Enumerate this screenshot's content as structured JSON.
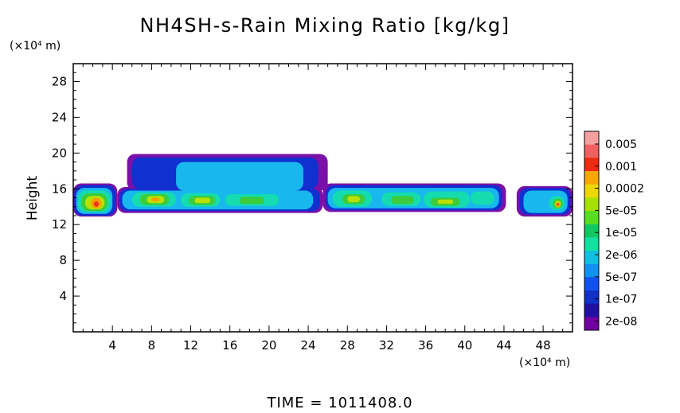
{
  "chart_data": {
    "type": "heatmap",
    "title": "NH4SH-s-Rain Mixing Ratio [kg/kg]",
    "ylabel": "Height",
    "y_unit_label": "(×10⁴ m)",
    "x_unit_label": "(×10⁴ m)",
    "xlim": [
      0,
      51
    ],
    "ylim": [
      0,
      30
    ],
    "x_ticks": [
      4,
      8,
      12,
      16,
      20,
      24,
      28,
      32,
      36,
      40,
      44,
      48
    ],
    "y_ticks": [
      4,
      8,
      12,
      16,
      20,
      24,
      28
    ],
    "colorbar": {
      "labels": [
        "0.005",
        "0.001",
        "0.0002",
        "5e-05",
        "1e-05",
        "2e-06",
        "5e-07",
        "1e-07",
        "2e-08"
      ],
      "colors": [
        "#f4a0a0",
        "#f06060",
        "#ee2a10",
        "#f7a800",
        "#ecd800",
        "#a8e000",
        "#58dd20",
        "#10c860",
        "#10e0a0",
        "#10c0e0",
        "#1090f0",
        "#1050f0",
        "#1030c8",
        "#2010a0",
        "#7000a0"
      ]
    },
    "field_layers": [
      {
        "level": "2e-08",
        "color": "#7a10a8",
        "regions": [
          {
            "x": [
              0.0,
              4.5
            ],
            "y": [
              12.9,
              16.6
            ]
          },
          {
            "x": [
              4.5,
              25.5
            ],
            "y": [
              13.3,
              16.2
            ]
          },
          {
            "x": [
              5.5,
              26.0
            ],
            "y": [
              15.8,
              19.9
            ]
          },
          {
            "x": [
              25.5,
              44.2
            ],
            "y": [
              13.4,
              16.6
            ]
          },
          {
            "x": [
              45.3,
              51.0
            ],
            "y": [
              12.9,
              16.3
            ]
          }
        ]
      },
      {
        "level": "1e-07",
        "color": "#1030d0",
        "regions": [
          {
            "x": [
              0.1,
              4.3
            ],
            "y": [
              13.0,
              16.4
            ]
          },
          {
            "x": [
              4.7,
              25.2
            ],
            "y": [
              13.5,
              16.0
            ]
          },
          {
            "x": [
              6.0,
              25.0
            ],
            "y": [
              16.0,
              19.5
            ]
          },
          {
            "x": [
              25.8,
              43.8
            ],
            "y": [
              13.6,
              16.4
            ]
          },
          {
            "x": [
              45.6,
              50.8
            ],
            "y": [
              13.1,
              16.1
            ]
          }
        ]
      },
      {
        "level": "5e-07",
        "color": "#18b8ee",
        "regions": [
          {
            "x": [
              0.3,
              4.0
            ],
            "y": [
              13.2,
              16.1
            ]
          },
          {
            "x": [
              5.0,
              24.5
            ],
            "y": [
              13.7,
              15.8
            ]
          },
          {
            "x": [
              10.5,
              23.5
            ],
            "y": [
              15.8,
              19.0
            ]
          },
          {
            "x": [
              26.0,
              43.5
            ],
            "y": [
              13.8,
              16.1
            ]
          },
          {
            "x": [
              46.0,
              50.5
            ],
            "y": [
              13.3,
              15.8
            ]
          }
        ]
      },
      {
        "level": "2e-06",
        "color": "#14dcb0",
        "regions": [
          {
            "x": [
              0.5,
              3.8
            ],
            "y": [
              13.4,
              15.8
            ]
          },
          {
            "x": [
              6.0,
              10.5
            ],
            "y": [
              14.0,
              15.6
            ]
          },
          {
            "x": [
              11.0,
              15.0
            ],
            "y": [
              14.0,
              15.5
            ]
          },
          {
            "x": [
              15.5,
              21.0
            ],
            "y": [
              14.1,
              15.4
            ]
          },
          {
            "x": [
              26.5,
              30.5
            ],
            "y": [
              14.0,
              15.8
            ]
          },
          {
            "x": [
              31.5,
              35.5
            ],
            "y": [
              14.1,
              15.6
            ]
          },
          {
            "x": [
              35.8,
              40.5
            ],
            "y": [
              13.9,
              15.7
            ]
          },
          {
            "x": [
              40.6,
              43.0
            ],
            "y": [
              14.2,
              15.7
            ]
          },
          {
            "x": [
              48.6,
              50.2
            ],
            "y": [
              13.6,
              15.2
            ]
          }
        ]
      },
      {
        "level": "1e-05",
        "color": "#3ccc3c",
        "regions": [
          {
            "x": [
              0.8,
              3.5
            ],
            "y": [
              13.5,
              15.5
            ]
          },
          {
            "x": [
              6.8,
              9.8
            ],
            "y": [
              14.2,
              15.4
            ]
          },
          {
            "x": [
              11.8,
              14.5
            ],
            "y": [
              14.2,
              15.2
            ]
          },
          {
            "x": [
              17.0,
              19.5
            ],
            "y": [
              14.3,
              15.1
            ]
          },
          {
            "x": [
              27.5,
              29.8
            ],
            "y": [
              14.3,
              15.4
            ]
          },
          {
            "x": [
              32.5,
              34.8
            ],
            "y": [
              14.3,
              15.2
            ]
          },
          {
            "x": [
              36.5,
              39.5
            ],
            "y": [
              14.1,
              15.0
            ]
          },
          {
            "x": [
              49.0,
              50.0
            ],
            "y": [
              13.8,
              14.9
            ]
          }
        ]
      },
      {
        "level": "5e-05",
        "color": "#b8e000",
        "regions": [
          {
            "x": [
              1.2,
              3.2
            ],
            "y": [
              13.7,
              15.2
            ]
          },
          {
            "x": [
              7.5,
              9.3
            ],
            "y": [
              14.4,
              15.2
            ]
          },
          {
            "x": [
              12.4,
              14.0
            ],
            "y": [
              14.4,
              15.0
            ]
          },
          {
            "x": [
              28.0,
              29.3
            ],
            "y": [
              14.5,
              15.2
            ]
          },
          {
            "x": [
              37.2,
              38.8
            ],
            "y": [
              14.3,
              14.8
            ]
          },
          {
            "x": [
              49.2,
              49.8
            ],
            "y": [
              13.9,
              14.7
            ]
          }
        ]
      },
      {
        "level": "0.0002",
        "color": "#f7a000",
        "regions": [
          {
            "x": [
              1.8,
              2.9
            ],
            "y": [
              13.8,
              15.0
            ]
          },
          {
            "x": [
              8.0,
              8.8
            ],
            "y": [
              14.6,
              15.0
            ]
          },
          {
            "x": [
              49.3,
              49.7
            ],
            "y": [
              14.0,
              14.5
            ]
          }
        ]
      },
      {
        "level": "0.001",
        "color": "#ee3020",
        "regions": [
          {
            "x": [
              2.1,
              2.6
            ],
            "y": [
              14.0,
              14.6
            ]
          },
          {
            "x": [
              49.4,
              49.6
            ],
            "y": [
              14.1,
              14.4
            ]
          }
        ]
      }
    ]
  },
  "footer": {
    "time_label": "TIME = 1011408.0"
  }
}
